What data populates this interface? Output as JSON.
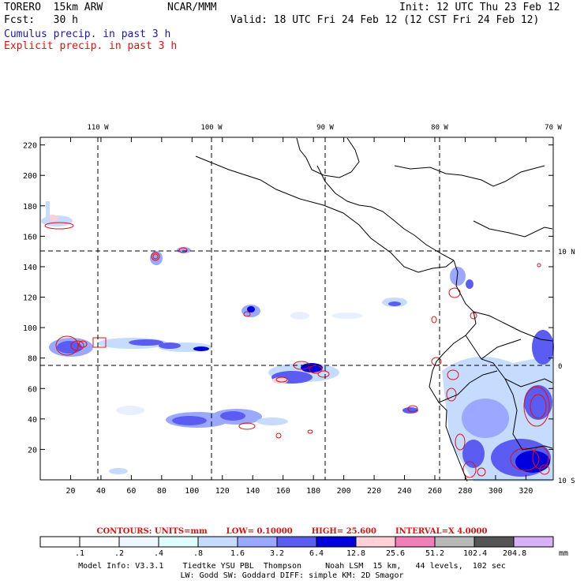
{
  "header": {
    "model": "TORERO  15km ARW",
    "center": "NCAR/MMM",
    "init": "Init: 12 UTC Thu 23 Feb 12",
    "fcst": "Fcst:   30 h",
    "valid": "Valid: 18 UTC Fri 24 Feb 12 (12 CST Fri 24 Feb 12)",
    "line_cumulus": "Cumulus precip. in past 3 h",
    "line_explicit": "Explicit precip. in past 3 h"
  },
  "axes": {
    "x_ticks": [
      "20",
      "40",
      "60",
      "80",
      "100",
      "120",
      "140",
      "160",
      "180",
      "200",
      "220",
      "240",
      "260",
      "280",
      "300",
      "320"
    ],
    "y_ticks": [
      "20",
      "40",
      "60",
      "80",
      "100",
      "120",
      "140",
      "160",
      "180",
      "200",
      "220"
    ],
    "lon_labels": [
      "110 W",
      "100 W",
      "90 W",
      "80 W",
      "70 W"
    ],
    "lat_labels": [
      "10 N",
      "0",
      "10 S"
    ]
  },
  "contour_info": {
    "units": "CONTOURS:  UNITS=mm",
    "low": "LOW= 0.10000",
    "high": "HIGH=  25.600",
    "interval": "INTERVAL=X  4.0000"
  },
  "legend": {
    "unit": "mm",
    "labels": [
      ".1",
      ".2",
      ".4",
      ".8",
      "1.6",
      "3.2",
      "6.4",
      "12.8",
      "25.6",
      "51.2",
      "102.4",
      "204.8"
    ],
    "colors": [
      "#ffffff",
      "#ffffff",
      "#eef6ff",
      "#e0fdfe",
      "#c5dcff",
      "#9aa8ff",
      "#5a5cf2",
      "#0000dc",
      "#ffd0d8",
      "#f07fb8",
      "#b8b8b8",
      "#555555",
      "#d8b0f8"
    ]
  },
  "footer": {
    "line1": "Model Info: V3.3.1    Tiedtke YSU PBL  Thompson     Noah LSM  15 km,   44 levels,  102 sec",
    "line2": "LW: Godd SW: Goddard DIFF: simple KM: 2D Smagor"
  },
  "colors": {
    "light_blue": "#c5dcff",
    "mid_blue": "#9aa8ff",
    "blue": "#5a5cf2",
    "deep_blue": "#0000dc",
    "pink": "#ffd0d8",
    "contour_red": "#e01010"
  }
}
